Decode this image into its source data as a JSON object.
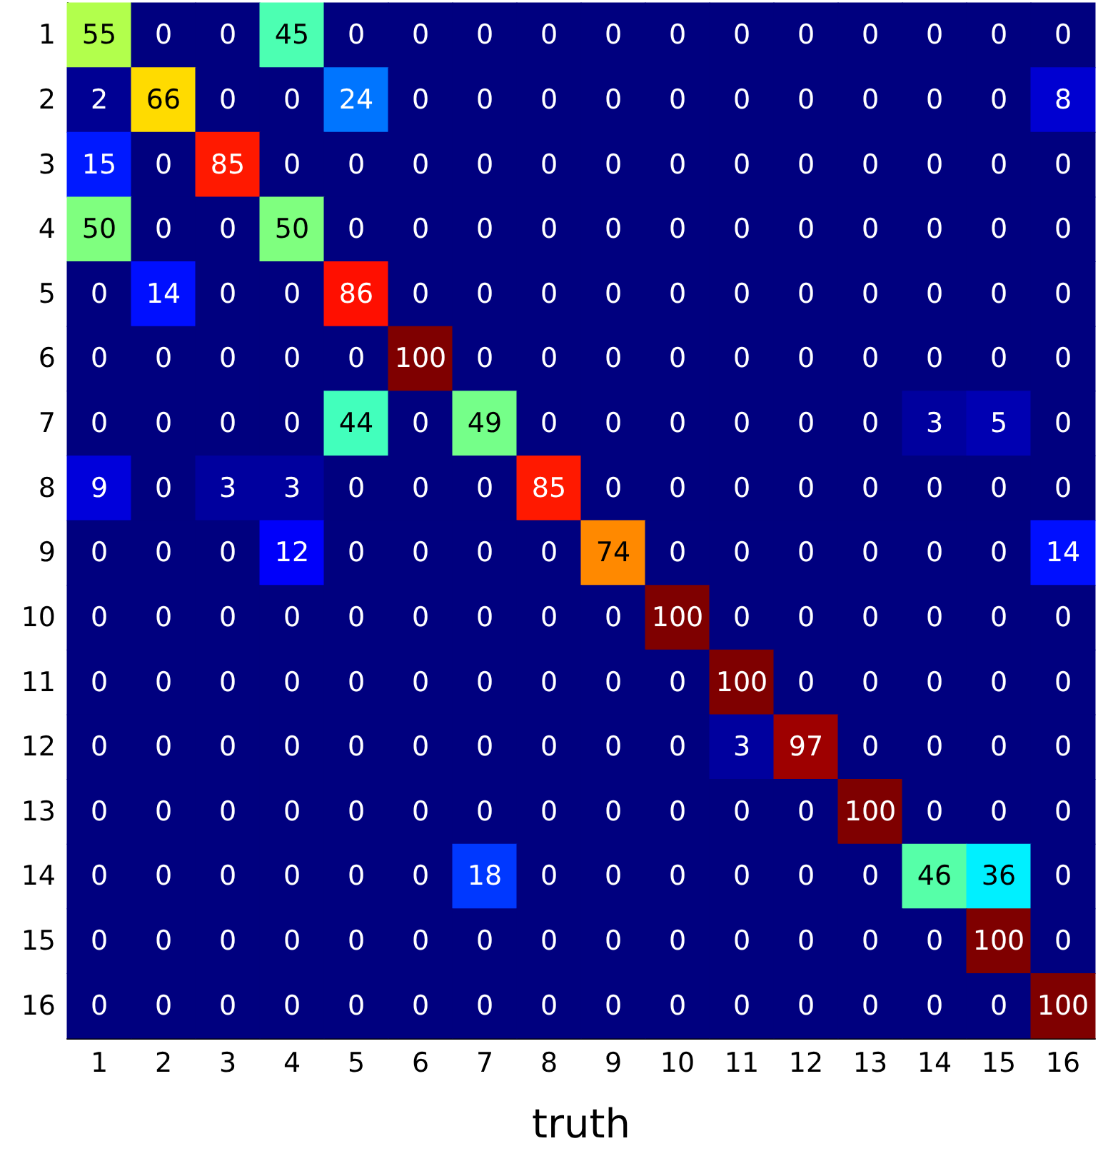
{
  "chart_data": {
    "type": "heatmap",
    "xlabel": "truth",
    "data_labels": true,
    "categories": [
      "1",
      "2",
      "3",
      "4",
      "5",
      "6",
      "7",
      "8",
      "9",
      "10",
      "11",
      "12",
      "13",
      "14",
      "15",
      "16"
    ],
    "y_categories": [
      "1",
      "2",
      "3",
      "4",
      "5",
      "6",
      "7",
      "8",
      "9",
      "10",
      "11",
      "12",
      "13",
      "14",
      "15",
      "16"
    ],
    "cells": [
      [
        55,
        0,
        0,
        45,
        0,
        0,
        0,
        0,
        0,
        0,
        0,
        0,
        0,
        0,
        0,
        0
      ],
      [
        2,
        66,
        0,
        0,
        24,
        0,
        0,
        0,
        0,
        0,
        0,
        0,
        0,
        0,
        0,
        8
      ],
      [
        15,
        0,
        85,
        0,
        0,
        0,
        0,
        0,
        0,
        0,
        0,
        0,
        0,
        0,
        0,
        0
      ],
      [
        50,
        0,
        0,
        50,
        0,
        0,
        0,
        0,
        0,
        0,
        0,
        0,
        0,
        0,
        0,
        0
      ],
      [
        0,
        14,
        0,
        0,
        86,
        0,
        0,
        0,
        0,
        0,
        0,
        0,
        0,
        0,
        0,
        0
      ],
      [
        0,
        0,
        0,
        0,
        0,
        100,
        0,
        0,
        0,
        0,
        0,
        0,
        0,
        0,
        0,
        0
      ],
      [
        0,
        0,
        0,
        0,
        44,
        0,
        49,
        0,
        0,
        0,
        0,
        0,
        0,
        3,
        5,
        0
      ],
      [
        9,
        0,
        3,
        3,
        0,
        0,
        0,
        85,
        0,
        0,
        0,
        0,
        0,
        0,
        0,
        0
      ],
      [
        0,
        0,
        0,
        12,
        0,
        0,
        0,
        0,
        74,
        0,
        0,
        0,
        0,
        0,
        0,
        14
      ],
      [
        0,
        0,
        0,
        0,
        0,
        0,
        0,
        0,
        0,
        100,
        0,
        0,
        0,
        0,
        0,
        0
      ],
      [
        0,
        0,
        0,
        0,
        0,
        0,
        0,
        0,
        0,
        0,
        100,
        0,
        0,
        0,
        0,
        0
      ],
      [
        0,
        0,
        0,
        0,
        0,
        0,
        0,
        0,
        0,
        0,
        3,
        97,
        0,
        0,
        0,
        0
      ],
      [
        0,
        0,
        0,
        0,
        0,
        0,
        0,
        0,
        0,
        0,
        0,
        0,
        100,
        0,
        0,
        0
      ],
      [
        0,
        0,
        0,
        0,
        0,
        0,
        18,
        0,
        0,
        0,
        0,
        0,
        0,
        46,
        36,
        0
      ],
      [
        0,
        0,
        0,
        0,
        0,
        0,
        0,
        0,
        0,
        0,
        0,
        0,
        0,
        0,
        100,
        0
      ],
      [
        0,
        0,
        0,
        0,
        0,
        0,
        0,
        0,
        0,
        0,
        0,
        0,
        0,
        0,
        0,
        100
      ]
    ]
  }
}
